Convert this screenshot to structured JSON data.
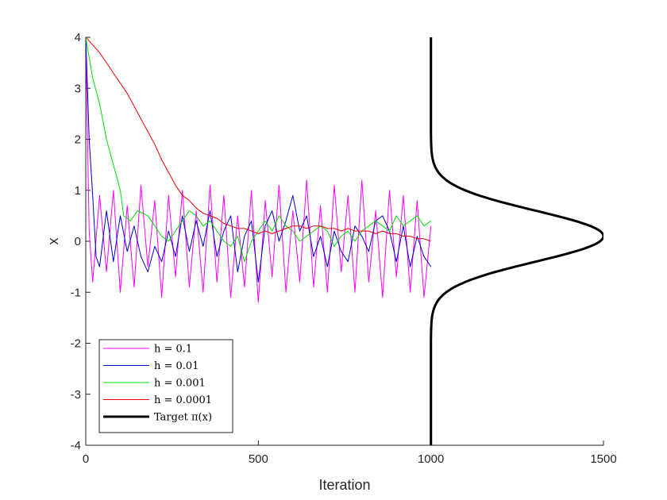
{
  "chart_data": {
    "type": "line",
    "xlabel": "Iteration",
    "ylabel": "x",
    "xlim": [
      0,
      1500
    ],
    "ylim": [
      -4,
      4
    ],
    "xticks": [
      0,
      500,
      1000,
      1500
    ],
    "yticks": [
      -4,
      -3,
      -2,
      -1,
      0,
      1,
      2,
      3,
      4
    ],
    "grid": false,
    "legend_position": "bottom-left",
    "series": [
      {
        "name": "h = 0.1",
        "color": "#ff00ff",
        "x": [
          0,
          10,
          20,
          40,
          60,
          80,
          100,
          120,
          140,
          160,
          180,
          200,
          220,
          240,
          260,
          280,
          300,
          320,
          340,
          360,
          380,
          400,
          420,
          440,
          460,
          480,
          500,
          520,
          540,
          560,
          580,
          600,
          620,
          640,
          660,
          680,
          700,
          720,
          740,
          760,
          780,
          800,
          820,
          840,
          860,
          880,
          900,
          920,
          940,
          960,
          980,
          1000
        ],
        "y": [
          4,
          0.2,
          -0.8,
          0.9,
          -0.6,
          1.0,
          -1.0,
          0.7,
          -0.9,
          1.1,
          -0.5,
          0.8,
          -1.1,
          0.9,
          -0.7,
          1.0,
          -0.9,
          0.6,
          -1.0,
          1.1,
          -0.8,
          0.9,
          -1.1,
          0.5,
          -0.9,
          1.0,
          -1.2,
          0.8,
          -0.7,
          1.1,
          -1.0,
          0.6,
          -0.8,
          1.2,
          -0.9,
          0.7,
          -1.0,
          1.1,
          -0.6,
          0.9,
          -1.0,
          1.2,
          -0.8,
          0.6,
          -1.1,
          1.0,
          -0.7,
          0.9,
          -1.0,
          0.8,
          -1.1,
          0.3
        ]
      },
      {
        "name": "h = 0.01",
        "color": "#0000cc",
        "x": [
          0,
          5,
          10,
          20,
          30,
          40,
          60,
          80,
          100,
          120,
          140,
          160,
          180,
          200,
          220,
          240,
          260,
          280,
          300,
          320,
          340,
          360,
          380,
          400,
          420,
          440,
          460,
          480,
          500,
          520,
          540,
          560,
          580,
          600,
          620,
          640,
          660,
          680,
          700,
          720,
          740,
          760,
          780,
          800,
          820,
          840,
          860,
          880,
          900,
          920,
          940,
          960,
          980,
          1000
        ],
        "y": [
          4,
          3.0,
          2.0,
          0.9,
          -0.3,
          -0.5,
          0.6,
          -0.4,
          0.5,
          -0.2,
          0.3,
          -0.3,
          -0.6,
          -0.1,
          -0.4,
          0.2,
          -0.3,
          0.5,
          -0.2,
          0.4,
          -0.1,
          0.6,
          -0.3,
          0.2,
          0.5,
          -0.6,
          0.1,
          0.4,
          -0.8,
          0.3,
          0.6,
          0.0,
          0.4,
          0.9,
          0.2,
          0.5,
          -0.3,
          0.1,
          -0.5,
          0.2,
          -0.2,
          -0.4,
          0.3,
          0.1,
          -0.2,
          0.4,
          0.5,
          0.2,
          -0.4,
          0.3,
          -0.5,
          0.1,
          -0.3,
          -0.5
        ]
      },
      {
        "name": "h = 0.001",
        "color": "#00dd00",
        "x": [
          0,
          20,
          40,
          60,
          80,
          100,
          110,
          130,
          150,
          180,
          200,
          220,
          240,
          260,
          280,
          300,
          320,
          340,
          360,
          380,
          400,
          420,
          440,
          460,
          480,
          500,
          520,
          540,
          560,
          580,
          600,
          620,
          640,
          660,
          680,
          700,
          720,
          740,
          760,
          780,
          800,
          820,
          840,
          860,
          880,
          900,
          920,
          940,
          960,
          980,
          1000
        ],
        "y": [
          4,
          3.2,
          2.7,
          2.0,
          1.5,
          1.0,
          0.5,
          0.4,
          0.6,
          0.5,
          0.3,
          0.1,
          0.0,
          0.2,
          0.4,
          0.6,
          0.5,
          0.3,
          0.4,
          0.2,
          0.0,
          -0.1,
          0.1,
          -0.4,
          0.0,
          0.2,
          0.4,
          0.2,
          0.5,
          0.3,
          0.2,
          0.0,
          0.1,
          0.2,
          0.3,
          0.2,
          -0.1,
          0.1,
          0.2,
          0.0,
          0.2,
          0.3,
          0.4,
          0.3,
          0.2,
          0.5,
          0.3,
          0.4,
          0.5,
          0.3,
          0.4
        ]
      },
      {
        "name": "h = 0.0001",
        "color": "#ee0000",
        "x": [
          0,
          20,
          40,
          60,
          80,
          100,
          120,
          140,
          160,
          180,
          200,
          220,
          240,
          260,
          280,
          300,
          320,
          340,
          360,
          380,
          400,
          420,
          440,
          460,
          480,
          500,
          520,
          540,
          560,
          580,
          600,
          620,
          640,
          660,
          680,
          700,
          720,
          740,
          760,
          780,
          800,
          820,
          840,
          860,
          880,
          900,
          920,
          940,
          960,
          980,
          1000
        ],
        "y": [
          4,
          3.85,
          3.7,
          3.5,
          3.3,
          3.1,
          2.9,
          2.65,
          2.4,
          2.15,
          1.9,
          1.6,
          1.35,
          1.1,
          0.9,
          0.8,
          0.65,
          0.55,
          0.5,
          0.45,
          0.35,
          0.3,
          0.25,
          0.25,
          0.2,
          0.15,
          0.2,
          0.15,
          0.2,
          0.25,
          0.3,
          0.3,
          0.25,
          0.3,
          0.3,
          0.25,
          0.25,
          0.2,
          0.25,
          0.2,
          0.2,
          0.2,
          0.15,
          0.2,
          0.15,
          0.15,
          0.1,
          0.1,
          0.05,
          0.05,
          0.0
        ]
      },
      {
        "name": "Target π(x)",
        "color": "#000000",
        "form": "density curve, baseline at Iteration 1000, peak reaching 1500 at x ≈ 0.1, sd ≈ 0.5"
      }
    ]
  }
}
